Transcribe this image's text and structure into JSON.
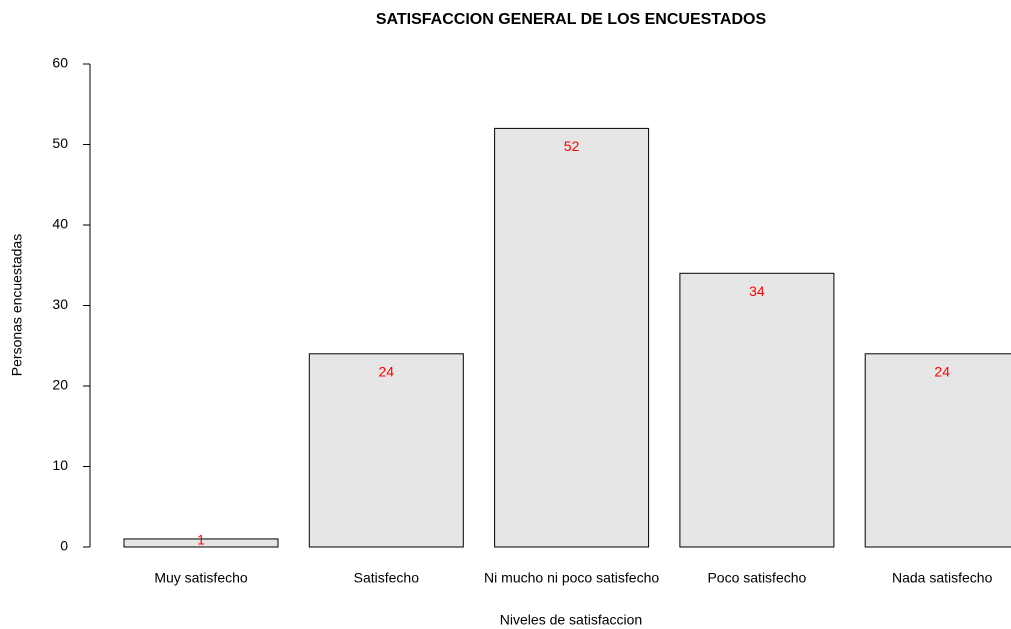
{
  "chart_data": {
    "type": "bar",
    "title": "SATISFACCION GENERAL DE LOS ENCUESTADOS",
    "x_label": "Niveles de satisfaccion",
    "y_label": "Personas encuestadas",
    "categories": [
      "Muy satisfecho",
      "Satisfecho",
      "Ni mucho ni poco satisfecho",
      "Poco satisfecho",
      "Nada satisfecho"
    ],
    "values": [
      1,
      24,
      52,
      34,
      24
    ],
    "color": "#e6e6e6",
    "value_label_color": "#ff0000",
    "ylim": [
      0,
      60
    ],
    "yticks": [
      0,
      10,
      20,
      30,
      40,
      50,
      60
    ],
    "grid": false
  }
}
